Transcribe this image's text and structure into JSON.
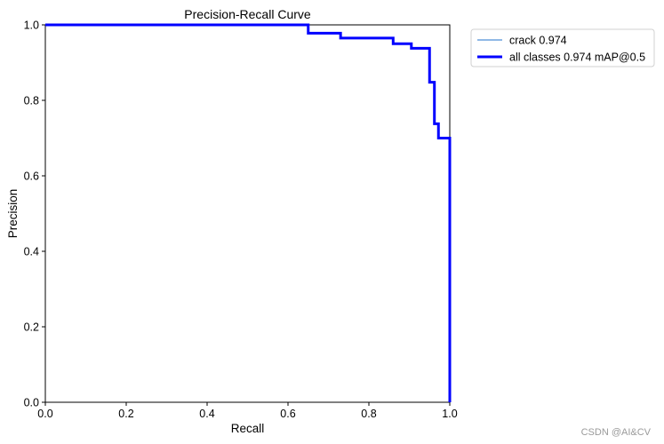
{
  "chart_data": {
    "type": "line",
    "title": "Precision-Recall Curve",
    "xlabel": "Recall",
    "ylabel": "Precision",
    "xlim": [
      0,
      1
    ],
    "ylim": [
      0,
      1
    ],
    "xticks": [
      "0.0",
      "0.2",
      "0.4",
      "0.6",
      "0.8",
      "1.0"
    ],
    "yticks": [
      "0.0",
      "0.2",
      "0.4",
      "0.6",
      "0.8",
      "1.0"
    ],
    "grid": false,
    "legend_position": "outside-top-right",
    "series": [
      {
        "name": "crack 0.974",
        "color": "#4e8fd6",
        "line": "thin",
        "x": [
          0.0,
          0.65,
          0.65,
          0.73,
          0.73,
          0.86,
          0.86,
          0.905,
          0.905,
          0.95,
          0.95,
          0.962,
          0.962,
          0.972,
          0.972,
          0.985,
          0.985,
          1.0,
          1.0
        ],
        "y": [
          1.0,
          1.0,
          0.978,
          0.978,
          0.965,
          0.965,
          0.95,
          0.95,
          0.938,
          0.938,
          0.848,
          0.848,
          0.738,
          0.738,
          0.7,
          0.7,
          0.7,
          0.7,
          0.0
        ]
      },
      {
        "name": "all classes 0.974 mAP@0.5",
        "color": "#0000ff",
        "line": "thick",
        "x": [
          0.0,
          0.65,
          0.65,
          0.73,
          0.73,
          0.86,
          0.86,
          0.905,
          0.905,
          0.95,
          0.95,
          0.962,
          0.962,
          0.972,
          0.972,
          0.985,
          0.985,
          1.0,
          1.0
        ],
        "y": [
          1.0,
          1.0,
          0.978,
          0.978,
          0.965,
          0.965,
          0.95,
          0.95,
          0.938,
          0.938,
          0.848,
          0.848,
          0.738,
          0.738,
          0.7,
          0.7,
          0.7,
          0.7,
          0.0
        ]
      }
    ]
  },
  "watermark": "CSDN @AI&CV"
}
